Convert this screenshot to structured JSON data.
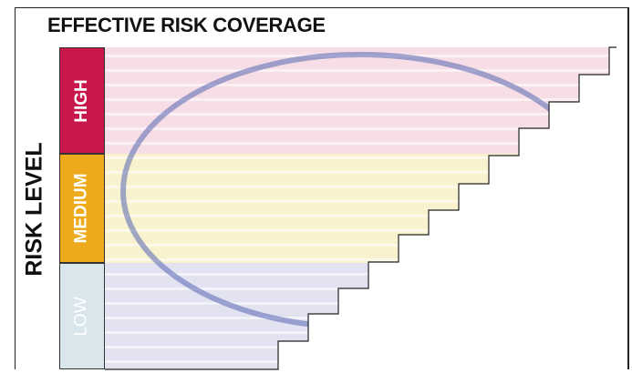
{
  "title": "EFFECTIVE RISK COVERAGE",
  "axis_label": "RISK LEVEL",
  "levels": [
    {
      "label": "HIGH",
      "color": "#c8174a",
      "text_color": "#ffffff"
    },
    {
      "label": "MEDIUM",
      "color": "#ecaa1c",
      "text_color": "#ffffff"
    },
    {
      "label": "LOW",
      "color": "#d9e7ec",
      "text_color": "#ffffff"
    }
  ],
  "colors": {
    "staircase_fill": "#eeeaf4",
    "high_band": "#f6dde6",
    "medium_band": "#f8f2cf",
    "low_band": "#e3e2f1",
    "ellipse_stroke": "#5566b0",
    "outline": "#222222"
  },
  "steps": 12
}
